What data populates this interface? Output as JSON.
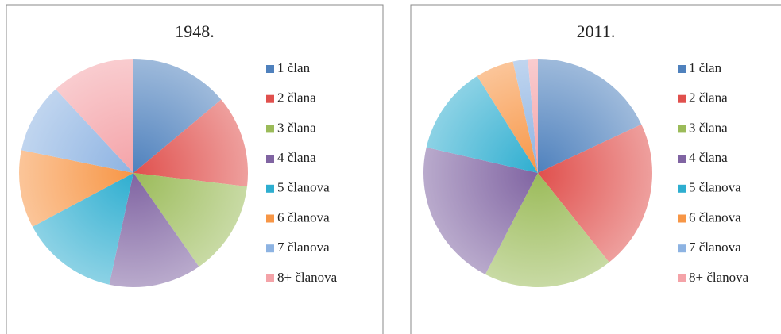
{
  "chart_data": [
    {
      "type": "pie",
      "title": "1948.",
      "categories": [
        "1 član",
        "2 člana",
        "3 člana",
        "4 člana",
        "5 članova",
        "6 članova",
        "7 članova",
        "8+ članova"
      ],
      "values": [
        13.9,
        13,
        13.4,
        13.1,
        13.8,
        11,
        9.9,
        11.9
      ],
      "colors": [
        "#4f81bd",
        "#e0504d",
        "#9bbb59",
        "#8064a2",
        "#2eaed0",
        "#f79646",
        "#8db3e2",
        "#f4a3a8"
      ],
      "legend": "right"
    },
    {
      "type": "pie",
      "title": "2011.",
      "categories": [
        "1 član",
        "2 člana",
        "3 člana",
        "4 člana",
        "5 članova",
        "6 članova",
        "7 članova",
        "8+ članova"
      ],
      "values": [
        18,
        21.3,
        18.3,
        21,
        12.5,
        5.4,
        2.1,
        1.4
      ],
      "colors": [
        "#4f81bd",
        "#e0504d",
        "#9bbb59",
        "#8064a2",
        "#2eaed0",
        "#f79646",
        "#8db3e2",
        "#f4a3a8"
      ],
      "legend": "right"
    }
  ]
}
